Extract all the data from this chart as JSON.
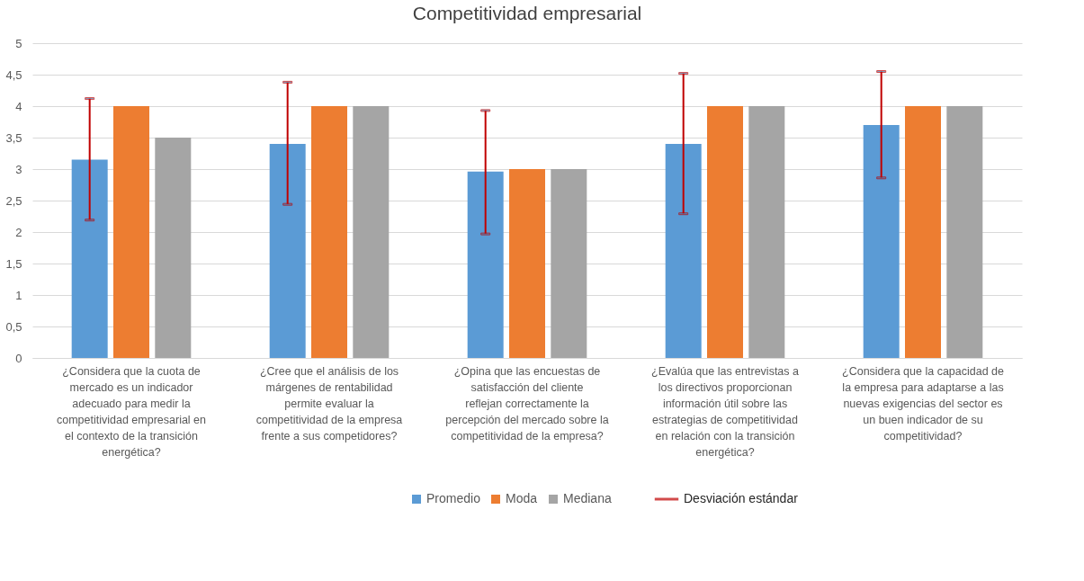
{
  "chart_data": {
    "type": "bar",
    "title": "Competitividad empresarial",
    "categories": [
      "¿Considera que la cuota de mercado es un indicador adecuado para medir la competitividad empresarial en el contexto de la transición energética?",
      "¿Cree que el análisis de los márgenes de rentabilidad permite evaluar la competitividad de la empresa frente a sus competidores?",
      "¿Opina que las encuestas de satisfacción del cliente reflejan correctamente la percepción del mercado sobre la competitividad de la empresa?",
      "¿Evalúa que las entrevistas a los directivos proporcionan información útil sobre las estrategias de competitividad en relación con la transición energética?",
      "¿Considera que la capacidad de la empresa para adaptarse a las nuevas exigencias del sector es un buen indicador de su competitividad?"
    ],
    "series": [
      {
        "name": "Promedio",
        "color": "#5b9bd5",
        "values": [
          3.15,
          3.4,
          2.96,
          3.4,
          3.7
        ],
        "errors": [
          [
            2.19,
            4.12
          ],
          [
            2.44,
            4.38
          ],
          [
            1.97,
            3.93
          ],
          [
            2.29,
            4.52
          ],
          [
            2.86,
            4.55
          ]
        ]
      },
      {
        "name": "Moda",
        "color": "#ed7d31",
        "values": [
          4,
          4,
          3,
          4,
          4
        ]
      },
      {
        "name": "Mediana",
        "color": "#a5a5a5",
        "values": [
          3.5,
          4,
          3,
          4,
          4
        ]
      }
    ],
    "legend_title": "Desviación estándar",
    "ylim": [
      0,
      5
    ],
    "yticks": [
      {
        "value": 0,
        "label": "0"
      },
      {
        "value": 0.5,
        "label": "0,5"
      },
      {
        "value": 1,
        "label": "1"
      },
      {
        "value": 1.5,
        "label": "1,5"
      },
      {
        "value": 2,
        "label": "2"
      },
      {
        "value": 2.5,
        "label": "2,5"
      },
      {
        "value": 3,
        "label": "3"
      },
      {
        "value": 3.5,
        "label": "3,5"
      },
      {
        "value": 4,
        "label": "4"
      },
      {
        "value": 4.5,
        "label": "4,5"
      },
      {
        "value": 5,
        "label": "5"
      }
    ],
    "grid": "y",
    "legend": "bottom"
  }
}
